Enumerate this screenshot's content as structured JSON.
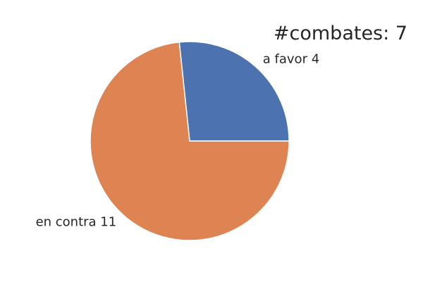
{
  "chart_data": {
    "type": "pie",
    "title": "#combates: 7",
    "slices": [
      {
        "label": "a favor",
        "value": 4,
        "display": "a favor 4",
        "color": "#4c72b0"
      },
      {
        "label": "en contra",
        "value": 11,
        "display": "en contra 11",
        "color": "#dd8452"
      }
    ],
    "start_angle_deg": 0,
    "direction": "counterclockwise",
    "edge_color": "#ffffff"
  }
}
